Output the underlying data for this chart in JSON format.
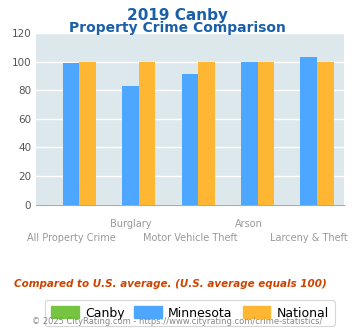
{
  "title_line1": "2019 Canby",
  "title_line2": "Property Crime Comparison",
  "categories": [
    "All Property Crime",
    "Burglary",
    "Motor Vehicle Theft",
    "Arson",
    "Larceny & Theft"
  ],
  "canby_values": [
    0,
    0,
    0,
    0,
    0
  ],
  "minnesota_values": [
    99,
    83,
    91,
    100,
    103
  ],
  "national_values": [
    100,
    100,
    100,
    100,
    100
  ],
  "bar_colors": {
    "canby": "#76c442",
    "minnesota": "#4da6ff",
    "national": "#ffb733"
  },
  "ylim": [
    0,
    120
  ],
  "yticks": [
    0,
    20,
    40,
    60,
    80,
    100,
    120
  ],
  "plot_bg_color": "#dde8ec",
  "title_color": "#1a5fa8",
  "legend_labels": [
    "Canby",
    "Minnesota",
    "National"
  ],
  "note_text": "Compared to U.S. average. (U.S. average equals 100)",
  "note_color": "#cc4400",
  "footer_text": "© 2025 CityRating.com - https://www.cityrating.com/crime-statistics/",
  "footer_color": "#888888",
  "grid_color": "#ffffff",
  "row1_labels": {
    "1": "Burglary",
    "3": "Arson"
  },
  "row2_labels": {
    "0": "All Property Crime",
    "2": "Motor Vehicle Theft",
    "4": "Larceny & Theft"
  }
}
